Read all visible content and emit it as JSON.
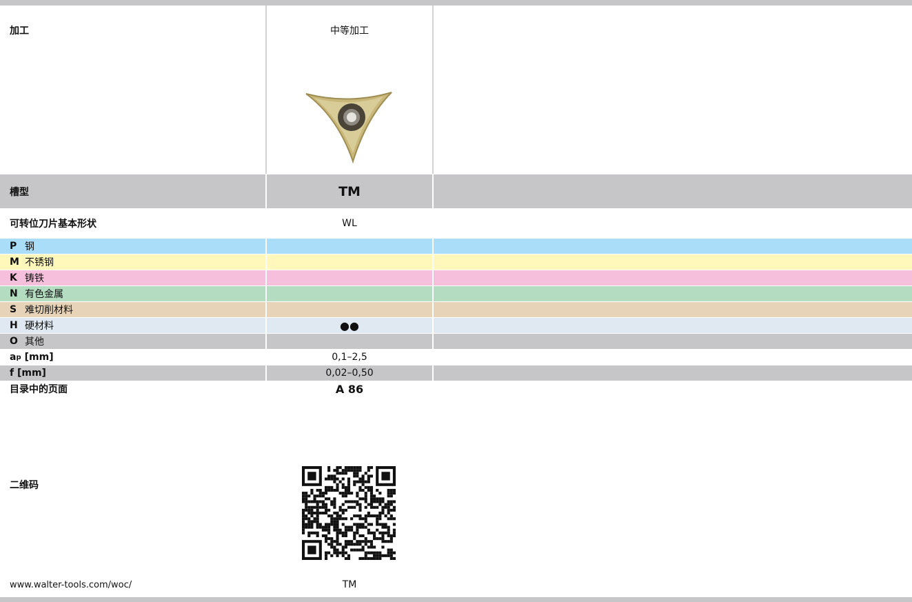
{
  "table": {
    "rows": [
      {
        "label": "加工",
        "value": "中等加工"
      },
      {
        "label": "槽型",
        "value": "TM"
      },
      {
        "label": "可转位刀片基本形状",
        "value": "WL"
      },
      {
        "code": "P",
        "label": "钢"
      },
      {
        "code": "M",
        "label": "不锈钢"
      },
      {
        "code": "K",
        "label": "铸铁"
      },
      {
        "code": "N",
        "label": "有色金属"
      },
      {
        "code": "S",
        "label": "难切削材料"
      },
      {
        "code": "H",
        "label": "硬材料",
        "value": "●●"
      },
      {
        "code": "O",
        "label": "其他"
      },
      {
        "label": {
          "symbol": "a",
          "subscript": "p",
          "unit": "[mm]"
        },
        "value": "0,1–2,5"
      },
      {
        "label": "f [mm]",
        "value": "0,02–0,50"
      },
      {
        "label": "目录中的页面",
        "value": "A 86"
      },
      {
        "label": "二维码"
      },
      {
        "label": "www.walter-tools.com/woc/",
        "value": "TM"
      }
    ]
  }
}
